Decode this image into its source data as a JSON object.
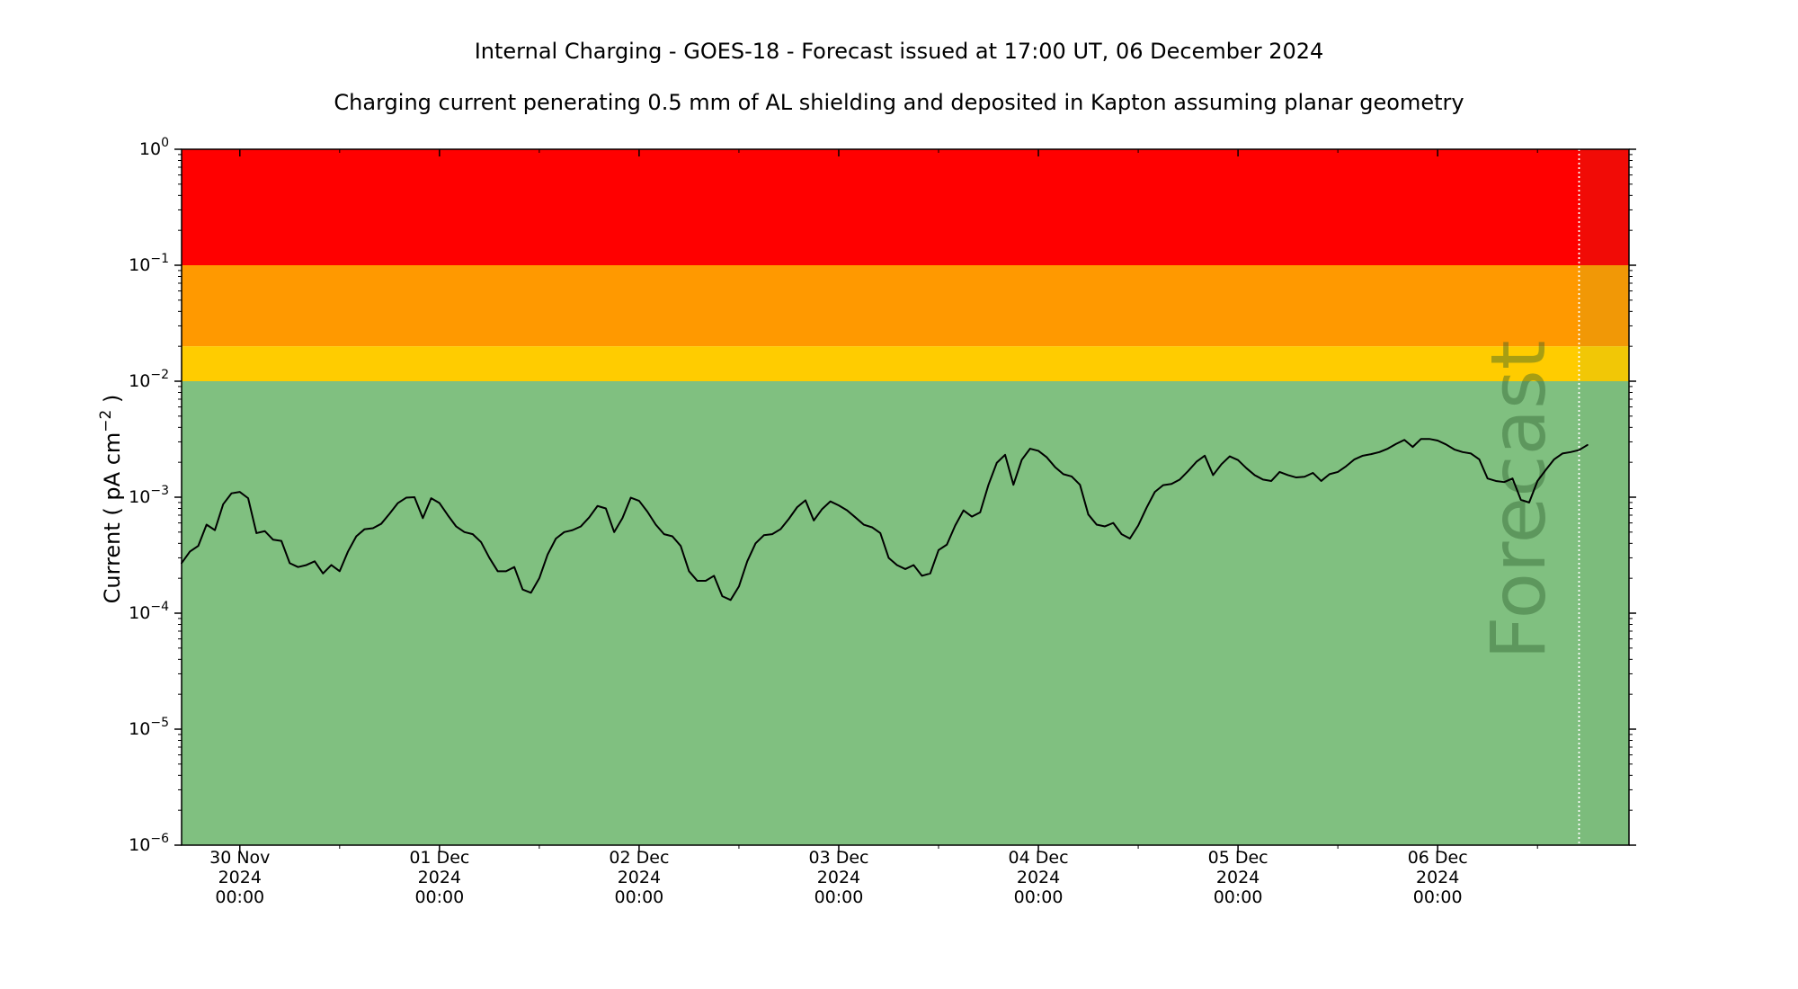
{
  "page": {
    "title": "Internal Charging - GOES-18 - Forecast issued at 17:00 UT, 06 December 2024",
    "subtitle": "Charging current penerating 0.5 mm of AL shielding and deposited in Kapton assuming planar geometry"
  },
  "chart_data": {
    "type": "line",
    "title": "Internal Charging - GOES-18 - Forecast issued at 17:00 UT, 06 December 2024",
    "subtitle": "Charging current penerating 0.5 mm of AL shielding and deposited in Kapton assuming planar geometry",
    "xlabel": "",
    "ylabel": "Current ( pA cm",
    "ylabel_exponent": "−2",
    "ylabel_suffix": " )",
    "y_scale": "log",
    "ylim": [
      1e-06,
      1
    ],
    "x_range": [
      "2024-11-29 17:00",
      "2024-12-06 23:00"
    ],
    "grid": false,
    "forecast_label": "Forecast",
    "forecast_start": "2024-12-06 17:00",
    "x_ticks": [
      {
        "time": "2024-11-30 00:00",
        "line1": "30 Nov",
        "line2": "2024",
        "line3": "00:00"
      },
      {
        "time": "2024-12-01 00:00",
        "line1": "01 Dec",
        "line2": "2024",
        "line3": "00:00"
      },
      {
        "time": "2024-12-02 00:00",
        "line1": "02 Dec",
        "line2": "2024",
        "line3": "00:00"
      },
      {
        "time": "2024-12-03 00:00",
        "line1": "03 Dec",
        "line2": "2024",
        "line3": "00:00"
      },
      {
        "time": "2024-12-04 00:00",
        "line1": "04 Dec",
        "line2": "2024",
        "line3": "00:00"
      },
      {
        "time": "2024-12-05 00:00",
        "line1": "05 Dec",
        "line2": "2024",
        "line3": "00:00"
      },
      {
        "time": "2024-12-06 00:00",
        "line1": "06 Dec",
        "line2": "2024",
        "line3": "00:00"
      }
    ],
    "y_ticks": [
      {
        "value": 1,
        "base": "10",
        "exp": "0"
      },
      {
        "value": 0.1,
        "base": "10",
        "exp": "−1"
      },
      {
        "value": 0.01,
        "base": "10",
        "exp": "−2"
      },
      {
        "value": 0.001,
        "base": "10",
        "exp": "−3"
      },
      {
        "value": 0.0001,
        "base": "10",
        "exp": "−4"
      },
      {
        "value": 1e-05,
        "base": "10",
        "exp": "−5"
      },
      {
        "value": 1e-06,
        "base": "10",
        "exp": "−6"
      }
    ],
    "bands": [
      {
        "from": 0.1,
        "to": 1,
        "color": "#ff0000"
      },
      {
        "from": 0.02,
        "to": 0.1,
        "color": "#ff9900"
      },
      {
        "from": 0.01,
        "to": 0.02,
        "color": "#ffcc00"
      },
      {
        "from": 1e-06,
        "to": 0.01,
        "color": "#80c080"
      }
    ],
    "series": [
      {
        "color": "#000000",
        "points": [
          {
            "t": "2024-11-29 17:00",
            "y": 0.00027
          },
          {
            "t": "2024-11-29 18:00",
            "y": 0.00034
          },
          {
            "t": "2024-11-29 19:00",
            "y": 0.00038
          },
          {
            "t": "2024-11-29 20:00",
            "y": 0.00058
          },
          {
            "t": "2024-11-29 21:00",
            "y": 0.00052
          },
          {
            "t": "2024-11-29 22:00",
            "y": 0.00087
          },
          {
            "t": "2024-11-29 23:00",
            "y": 0.00108
          },
          {
            "t": "2024-11-30 00:00",
            "y": 0.00111
          },
          {
            "t": "2024-11-30 01:00",
            "y": 0.00098
          },
          {
            "t": "2024-11-30 02:00",
            "y": 0.00049
          },
          {
            "t": "2024-11-30 03:00",
            "y": 0.00051
          },
          {
            "t": "2024-11-30 04:00",
            "y": 0.00043
          },
          {
            "t": "2024-11-30 05:00",
            "y": 0.00042
          },
          {
            "t": "2024-11-30 06:00",
            "y": 0.00027
          },
          {
            "t": "2024-11-30 07:00",
            "y": 0.00025
          },
          {
            "t": "2024-11-30 08:00",
            "y": 0.00026
          },
          {
            "t": "2024-11-30 09:00",
            "y": 0.00028
          },
          {
            "t": "2024-11-30 10:00",
            "y": 0.00022
          },
          {
            "t": "2024-11-30 11:00",
            "y": 0.00026
          },
          {
            "t": "2024-11-30 12:00",
            "y": 0.00023
          },
          {
            "t": "2024-11-30 13:00",
            "y": 0.00034
          },
          {
            "t": "2024-11-30 14:00",
            "y": 0.00046
          },
          {
            "t": "2024-11-30 15:00",
            "y": 0.00053
          },
          {
            "t": "2024-11-30 16:00",
            "y": 0.00054
          },
          {
            "t": "2024-11-30 17:00",
            "y": 0.00059
          },
          {
            "t": "2024-11-30 18:00",
            "y": 0.00072
          },
          {
            "t": "2024-11-30 19:00",
            "y": 0.00089
          },
          {
            "t": "2024-11-30 20:00",
            "y": 0.00099
          },
          {
            "t": "2024-11-30 21:00",
            "y": 0.001
          },
          {
            "t": "2024-11-30 22:00",
            "y": 0.00066
          },
          {
            "t": "2024-11-30 23:00",
            "y": 0.00098
          },
          {
            "t": "2024-12-01 00:00",
            "y": 0.00089
          },
          {
            "t": "2024-12-01 01:00",
            "y": 0.0007
          },
          {
            "t": "2024-12-01 02:00",
            "y": 0.00056
          },
          {
            "t": "2024-12-01 03:00",
            "y": 0.0005
          },
          {
            "t": "2024-12-01 04:00",
            "y": 0.00048
          },
          {
            "t": "2024-12-01 05:00",
            "y": 0.00041
          },
          {
            "t": "2024-12-01 06:00",
            "y": 0.0003
          },
          {
            "t": "2024-12-01 07:00",
            "y": 0.00023
          },
          {
            "t": "2024-12-01 08:00",
            "y": 0.00023
          },
          {
            "t": "2024-12-01 09:00",
            "y": 0.00025
          },
          {
            "t": "2024-12-01 10:00",
            "y": 0.00016
          },
          {
            "t": "2024-12-01 11:00",
            "y": 0.00015
          },
          {
            "t": "2024-12-01 12:00",
            "y": 0.0002
          },
          {
            "t": "2024-12-01 13:00",
            "y": 0.00032
          },
          {
            "t": "2024-12-01 14:00",
            "y": 0.00044
          },
          {
            "t": "2024-12-01 15:00",
            "y": 0.0005
          },
          {
            "t": "2024-12-01 16:00",
            "y": 0.00052
          },
          {
            "t": "2024-12-01 17:00",
            "y": 0.00056
          },
          {
            "t": "2024-12-01 18:00",
            "y": 0.00067
          },
          {
            "t": "2024-12-01 19:00",
            "y": 0.00084
          },
          {
            "t": "2024-12-01 20:00",
            "y": 0.0008
          },
          {
            "t": "2024-12-01 21:00",
            "y": 0.0005
          },
          {
            "t": "2024-12-01 22:00",
            "y": 0.00066
          },
          {
            "t": "2024-12-01 23:00",
            "y": 0.00099
          },
          {
            "t": "2024-12-02 00:00",
            "y": 0.00093
          },
          {
            "t": "2024-12-02 01:00",
            "y": 0.00075
          },
          {
            "t": "2024-12-02 02:00",
            "y": 0.00058
          },
          {
            "t": "2024-12-02 03:00",
            "y": 0.00048
          },
          {
            "t": "2024-12-02 04:00",
            "y": 0.00046
          },
          {
            "t": "2024-12-02 05:00",
            "y": 0.00038
          },
          {
            "t": "2024-12-02 06:00",
            "y": 0.00023
          },
          {
            "t": "2024-12-02 07:00",
            "y": 0.00019
          },
          {
            "t": "2024-12-02 08:00",
            "y": 0.00019
          },
          {
            "t": "2024-12-02 09:00",
            "y": 0.00021
          },
          {
            "t": "2024-12-02 10:00",
            "y": 0.00014
          },
          {
            "t": "2024-12-02 11:00",
            "y": 0.00013
          },
          {
            "t": "2024-12-02 12:00",
            "y": 0.00017
          },
          {
            "t": "2024-12-02 13:00",
            "y": 0.00028
          },
          {
            "t": "2024-12-02 14:00",
            "y": 0.0004
          },
          {
            "t": "2024-12-02 15:00",
            "y": 0.00047
          },
          {
            "t": "2024-12-02 16:00",
            "y": 0.00048
          },
          {
            "t": "2024-12-02 17:00",
            "y": 0.00053
          },
          {
            "t": "2024-12-02 18:00",
            "y": 0.00065
          },
          {
            "t": "2024-12-02 19:00",
            "y": 0.00082
          },
          {
            "t": "2024-12-02 20:00",
            "y": 0.00094
          },
          {
            "t": "2024-12-02 21:00",
            "y": 0.00063
          },
          {
            "t": "2024-12-02 22:00",
            "y": 0.00079
          },
          {
            "t": "2024-12-02 23:00",
            "y": 0.00092
          },
          {
            "t": "2024-12-03 00:00",
            "y": 0.00085
          },
          {
            "t": "2024-12-03 01:00",
            "y": 0.00077
          },
          {
            "t": "2024-12-03 02:00",
            "y": 0.00067
          },
          {
            "t": "2024-12-03 03:00",
            "y": 0.00058
          },
          {
            "t": "2024-12-03 04:00",
            "y": 0.00055
          },
          {
            "t": "2024-12-03 05:00",
            "y": 0.00049
          },
          {
            "t": "2024-12-03 06:00",
            "y": 0.0003
          },
          {
            "t": "2024-12-03 07:00",
            "y": 0.00026
          },
          {
            "t": "2024-12-03 08:00",
            "y": 0.00024
          },
          {
            "t": "2024-12-03 09:00",
            "y": 0.00026
          },
          {
            "t": "2024-12-03 10:00",
            "y": 0.00021
          },
          {
            "t": "2024-12-03 11:00",
            "y": 0.00022
          },
          {
            "t": "2024-12-03 12:00",
            "y": 0.00035
          },
          {
            "t": "2024-12-03 13:00",
            "y": 0.00039
          },
          {
            "t": "2024-12-03 14:00",
            "y": 0.00057
          },
          {
            "t": "2024-12-03 15:00",
            "y": 0.00077
          },
          {
            "t": "2024-12-03 16:00",
            "y": 0.00068
          },
          {
            "t": "2024-12-03 17:00",
            "y": 0.00074
          },
          {
            "t": "2024-12-03 18:00",
            "y": 0.00128
          },
          {
            "t": "2024-12-03 19:00",
            "y": 0.00198
          },
          {
            "t": "2024-12-03 20:00",
            "y": 0.00232
          },
          {
            "t": "2024-12-03 21:00",
            "y": 0.00128
          },
          {
            "t": "2024-12-03 22:00",
            "y": 0.0021
          },
          {
            "t": "2024-12-03 23:00",
            "y": 0.00262
          },
          {
            "t": "2024-12-04 00:00",
            "y": 0.00251
          },
          {
            "t": "2024-12-04 01:00",
            "y": 0.00221
          },
          {
            "t": "2024-12-04 02:00",
            "y": 0.00182
          },
          {
            "t": "2024-12-04 03:00",
            "y": 0.00158
          },
          {
            "t": "2024-12-04 04:00",
            "y": 0.00151
          },
          {
            "t": "2024-12-04 05:00",
            "y": 0.00128
          },
          {
            "t": "2024-12-04 06:00",
            "y": 0.00071
          },
          {
            "t": "2024-12-04 07:00",
            "y": 0.00058
          },
          {
            "t": "2024-12-04 08:00",
            "y": 0.00056
          },
          {
            "t": "2024-12-04 09:00",
            "y": 0.0006
          },
          {
            "t": "2024-12-04 10:00",
            "y": 0.00048
          },
          {
            "t": "2024-12-04 11:00",
            "y": 0.00044
          },
          {
            "t": "2024-12-04 12:00",
            "y": 0.00057
          },
          {
            "t": "2024-12-04 13:00",
            "y": 0.00081
          },
          {
            "t": "2024-12-04 14:00",
            "y": 0.00111
          },
          {
            "t": "2024-12-04 15:00",
            "y": 0.00127
          },
          {
            "t": "2024-12-04 16:00",
            "y": 0.0013
          },
          {
            "t": "2024-12-04 17:00",
            "y": 0.00142
          },
          {
            "t": "2024-12-04 18:00",
            "y": 0.00168
          },
          {
            "t": "2024-12-04 19:00",
            "y": 0.00202
          },
          {
            "t": "2024-12-04 20:00",
            "y": 0.00228
          },
          {
            "t": "2024-12-04 21:00",
            "y": 0.00155
          },
          {
            "t": "2024-12-04 22:00",
            "y": 0.00192
          },
          {
            "t": "2024-12-04 23:00",
            "y": 0.00225
          },
          {
            "t": "2024-12-05 00:00",
            "y": 0.00209
          },
          {
            "t": "2024-12-05 01:00",
            "y": 0.00178
          },
          {
            "t": "2024-12-05 02:00",
            "y": 0.00155
          },
          {
            "t": "2024-12-05 03:00",
            "y": 0.00142
          },
          {
            "t": "2024-12-05 04:00",
            "y": 0.00138
          },
          {
            "t": "2024-12-05 05:00",
            "y": 0.00165
          },
          {
            "t": "2024-12-05 06:00",
            "y": 0.00155
          },
          {
            "t": "2024-12-05 07:00",
            "y": 0.00148
          },
          {
            "t": "2024-12-05 08:00",
            "y": 0.0015
          },
          {
            "t": "2024-12-05 09:00",
            "y": 0.00162
          },
          {
            "t": "2024-12-05 10:00",
            "y": 0.00138
          },
          {
            "t": "2024-12-05 11:00",
            "y": 0.00158
          },
          {
            "t": "2024-12-05 12:00",
            "y": 0.00165
          },
          {
            "t": "2024-12-05 13:00",
            "y": 0.00185
          },
          {
            "t": "2024-12-05 14:00",
            "y": 0.00212
          },
          {
            "t": "2024-12-05 15:00",
            "y": 0.00228
          },
          {
            "t": "2024-12-05 16:00",
            "y": 0.00235
          },
          {
            "t": "2024-12-05 17:00",
            "y": 0.00245
          },
          {
            "t": "2024-12-05 18:00",
            "y": 0.00262
          },
          {
            "t": "2024-12-05 19:00",
            "y": 0.00288
          },
          {
            "t": "2024-12-05 20:00",
            "y": 0.00312
          },
          {
            "t": "2024-12-05 21:00",
            "y": 0.00271
          },
          {
            "t": "2024-12-05 22:00",
            "y": 0.00318
          },
          {
            "t": "2024-12-05 23:00",
            "y": 0.00318
          },
          {
            "t": "2024-12-06 00:00",
            "y": 0.00308
          },
          {
            "t": "2024-12-06 01:00",
            "y": 0.00285
          },
          {
            "t": "2024-12-06 02:00",
            "y": 0.00258
          },
          {
            "t": "2024-12-06 03:00",
            "y": 0.00245
          },
          {
            "t": "2024-12-06 04:00",
            "y": 0.00238
          },
          {
            "t": "2024-12-06 05:00",
            "y": 0.00212
          },
          {
            "t": "2024-12-06 06:00",
            "y": 0.00145
          },
          {
            "t": "2024-12-06 07:00",
            "y": 0.00138
          },
          {
            "t": "2024-12-06 08:00",
            "y": 0.00135
          },
          {
            "t": "2024-12-06 09:00",
            "y": 0.00145
          },
          {
            "t": "2024-12-06 10:00",
            "y": 0.00095
          },
          {
            "t": "2024-12-06 11:00",
            "y": 0.0009
          },
          {
            "t": "2024-12-06 12:00",
            "y": 0.00138
          },
          {
            "t": "2024-12-06 13:00",
            "y": 0.00172
          },
          {
            "t": "2024-12-06 14:00",
            "y": 0.00212
          },
          {
            "t": "2024-12-06 15:00",
            "y": 0.00238
          },
          {
            "t": "2024-12-06 16:00",
            "y": 0.00245
          },
          {
            "t": "2024-12-06 17:00",
            "y": 0.00255
          },
          {
            "t": "2024-12-06 18:00",
            "y": 0.00282
          }
        ]
      }
    ]
  }
}
